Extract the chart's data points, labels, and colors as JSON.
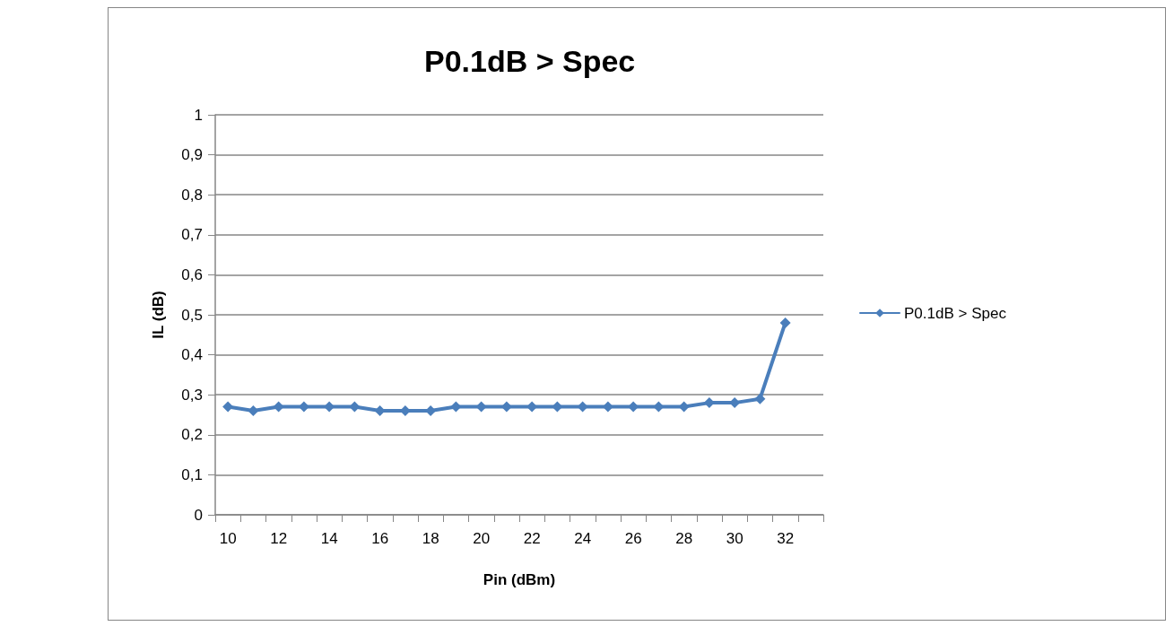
{
  "chart_data": {
    "type": "line",
    "title": "P0.1dB > Spec",
    "xlabel": "Pin (dBm)",
    "ylabel": "IL (dB)",
    "categories": [
      "10",
      null,
      "12",
      null,
      "14",
      null,
      "16",
      null,
      "18",
      null,
      "20",
      null,
      "22",
      null,
      "24",
      null,
      "26",
      null,
      "28",
      null,
      "30",
      null,
      "32",
      null
    ],
    "series": [
      {
        "name": "P0.1dB > Spec",
        "color": "#4a7ebb",
        "values": [
          0.27,
          0.26,
          0.27,
          0.27,
          0.27,
          0.27,
          0.26,
          0.26,
          0.26,
          0.27,
          0.27,
          0.27,
          0.27,
          0.27,
          0.27,
          0.27,
          0.27,
          0.27,
          0.27,
          0.28,
          0.28,
          0.29,
          0.48,
          null
        ]
      }
    ],
    "ylim": [
      0,
      1
    ],
    "yticks": [
      {
        "value": 0,
        "label": "0"
      },
      {
        "value": 0.1,
        "label": "0,1"
      },
      {
        "value": 0.2,
        "label": "0,2"
      },
      {
        "value": 0.3,
        "label": "0,3"
      },
      {
        "value": 0.4,
        "label": "0,4"
      },
      {
        "value": 0.5,
        "label": "0,5"
      },
      {
        "value": 0.6,
        "label": "0,6"
      },
      {
        "value": 0.7,
        "label": "0,7"
      },
      {
        "value": 0.8,
        "label": "0,8"
      },
      {
        "value": 0.9,
        "label": "0,9"
      },
      {
        "value": 1,
        "label": "1"
      }
    ],
    "grid": "y",
    "legend": "right",
    "marker": "diamond",
    "line_style": "solid"
  }
}
